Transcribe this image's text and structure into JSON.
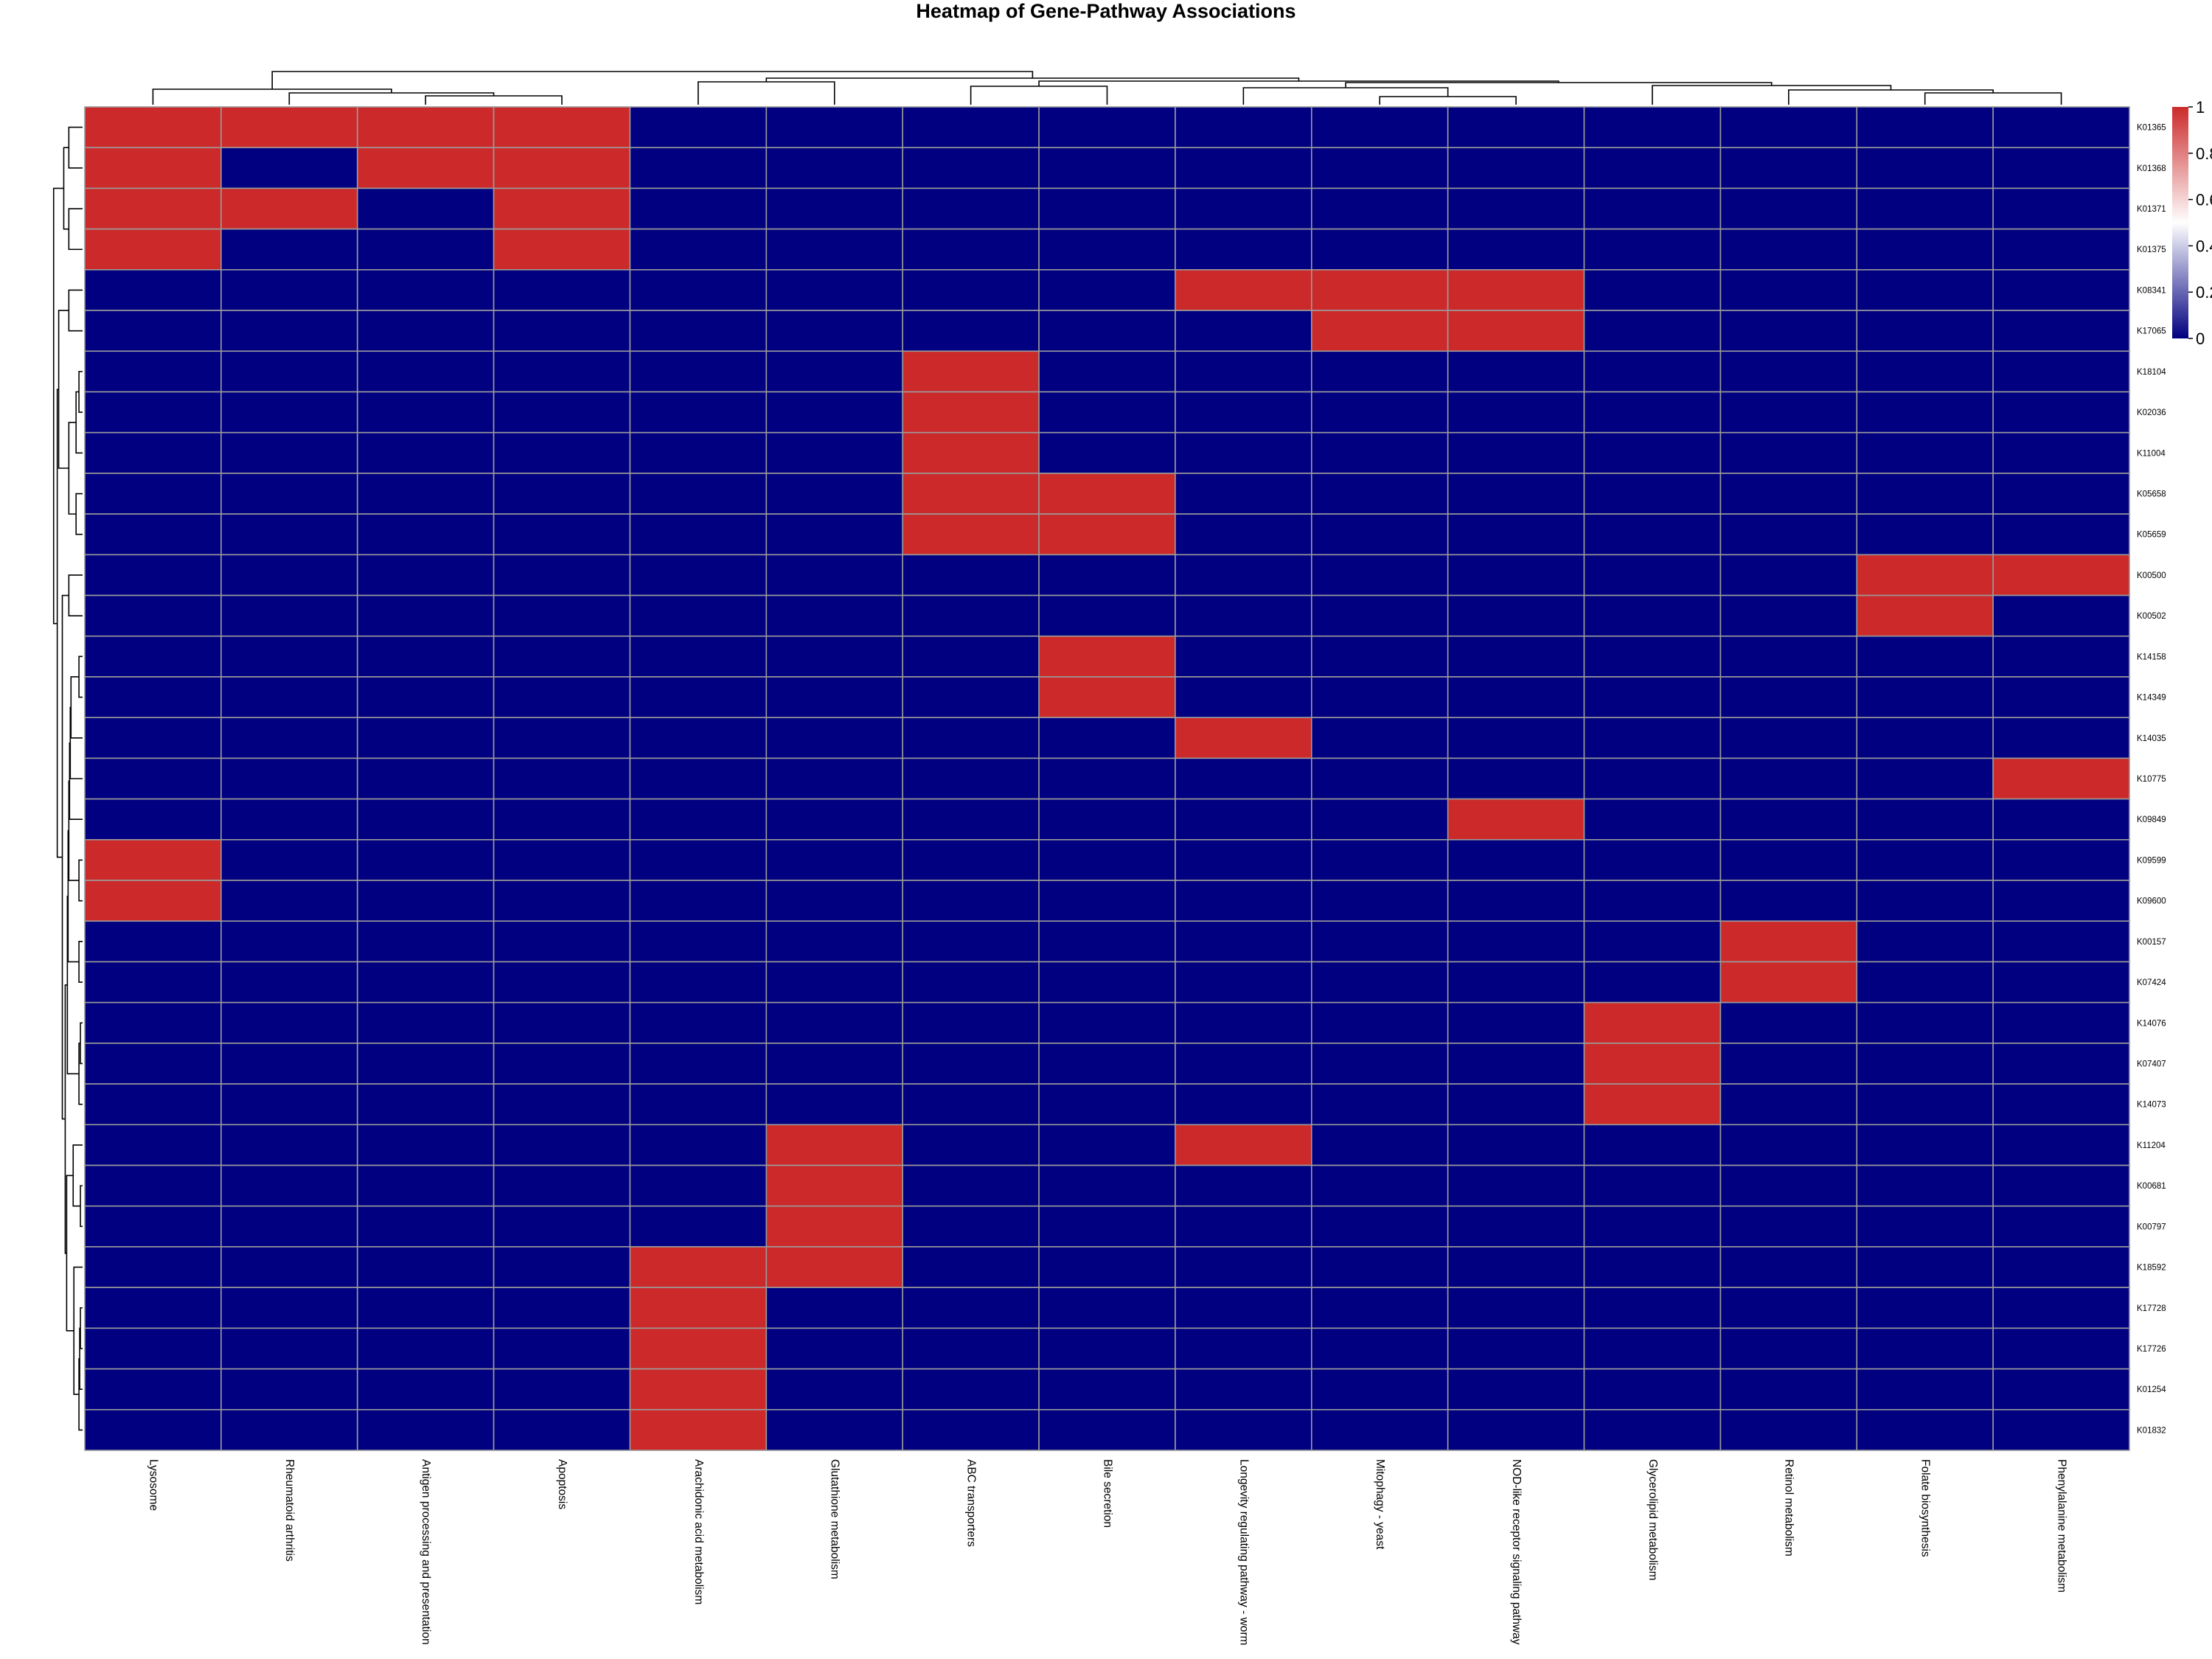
{
  "chart_data": {
    "type": "heatmap",
    "title": "Heatmap of Gene-Pathway Associations",
    "columns": [
      "Lysosome",
      "Rheumatoid arthritis",
      "Antigen processing and presentation",
      "Apoptosis",
      "Arachidonic acid metabolism",
      "Glutathione metabolism",
      "ABC transporters",
      "Bile secretion",
      "Longevity regulating pathway - worm",
      "Mitophagy - yeast",
      "NOD-like receptor signaling pathway",
      "Glycerolipid metabolism",
      "Retinol metabolism",
      "Folate biosynthesis",
      "Phenylalanine metabolism"
    ],
    "rows": [
      "K01365",
      "K01368",
      "K01371",
      "K01375",
      "K08341",
      "K17065",
      "K18104",
      "K02036",
      "K11004",
      "K05658",
      "K05659",
      "K00500",
      "K00502",
      "K14158",
      "K14349",
      "K14035",
      "K10775",
      "K09849",
      "K09599",
      "K09600",
      "K00157",
      "K07424",
      "K14076",
      "K07407",
      "K14073",
      "K11204",
      "K00681",
      "K00797",
      "K18592",
      "K17728",
      "K17726",
      "K01254",
      "K01832"
    ],
    "values": [
      [
        1,
        1,
        1,
        1,
        0,
        0,
        0,
        0,
        0,
        0,
        0,
        0,
        0,
        0,
        0
      ],
      [
        1,
        0,
        1,
        1,
        0,
        0,
        0,
        0,
        0,
        0,
        0,
        0,
        0,
        0,
        0
      ],
      [
        1,
        1,
        0,
        1,
        0,
        0,
        0,
        0,
        0,
        0,
        0,
        0,
        0,
        0,
        0
      ],
      [
        1,
        0,
        0,
        1,
        0,
        0,
        0,
        0,
        0,
        0,
        0,
        0,
        0,
        0,
        0
      ],
      [
        0,
        0,
        0,
        0,
        0,
        0,
        0,
        0,
        1,
        1,
        1,
        0,
        0,
        0,
        0
      ],
      [
        0,
        0,
        0,
        0,
        0,
        0,
        0,
        0,
        0,
        1,
        1,
        0,
        0,
        0,
        0
      ],
      [
        0,
        0,
        0,
        0,
        0,
        0,
        1,
        0,
        0,
        0,
        0,
        0,
        0,
        0,
        0
      ],
      [
        0,
        0,
        0,
        0,
        0,
        0,
        1,
        0,
        0,
        0,
        0,
        0,
        0,
        0,
        0
      ],
      [
        0,
        0,
        0,
        0,
        0,
        0,
        1,
        0,
        0,
        0,
        0,
        0,
        0,
        0,
        0
      ],
      [
        0,
        0,
        0,
        0,
        0,
        0,
        1,
        1,
        0,
        0,
        0,
        0,
        0,
        0,
        0
      ],
      [
        0,
        0,
        0,
        0,
        0,
        0,
        1,
        1,
        0,
        0,
        0,
        0,
        0,
        0,
        0
      ],
      [
        0,
        0,
        0,
        0,
        0,
        0,
        0,
        0,
        0,
        0,
        0,
        0,
        0,
        1,
        1
      ],
      [
        0,
        0,
        0,
        0,
        0,
        0,
        0,
        0,
        0,
        0,
        0,
        0,
        0,
        1,
        0
      ],
      [
        0,
        0,
        0,
        0,
        0,
        0,
        0,
        1,
        0,
        0,
        0,
        0,
        0,
        0,
        0
      ],
      [
        0,
        0,
        0,
        0,
        0,
        0,
        0,
        1,
        0,
        0,
        0,
        0,
        0,
        0,
        0
      ],
      [
        0,
        0,
        0,
        0,
        0,
        0,
        0,
        0,
        1,
        0,
        0,
        0,
        0,
        0,
        0
      ],
      [
        0,
        0,
        0,
        0,
        0,
        0,
        0,
        0,
        0,
        0,
        0,
        0,
        0,
        0,
        1
      ],
      [
        0,
        0,
        0,
        0,
        0,
        0,
        0,
        0,
        0,
        0,
        1,
        0,
        0,
        0,
        0
      ],
      [
        1,
        0,
        0,
        0,
        0,
        0,
        0,
        0,
        0,
        0,
        0,
        0,
        0,
        0,
        0
      ],
      [
        1,
        0,
        0,
        0,
        0,
        0,
        0,
        0,
        0,
        0,
        0,
        0,
        0,
        0,
        0
      ],
      [
        0,
        0,
        0,
        0,
        0,
        0,
        0,
        0,
        0,
        0,
        0,
        0,
        1,
        0,
        0
      ],
      [
        0,
        0,
        0,
        0,
        0,
        0,
        0,
        0,
        0,
        0,
        0,
        0,
        1,
        0,
        0
      ],
      [
        0,
        0,
        0,
        0,
        0,
        0,
        0,
        0,
        0,
        0,
        0,
        1,
        0,
        0,
        0
      ],
      [
        0,
        0,
        0,
        0,
        0,
        0,
        0,
        0,
        0,
        0,
        0,
        1,
        0,
        0,
        0
      ],
      [
        0,
        0,
        0,
        0,
        0,
        0,
        0,
        0,
        0,
        0,
        0,
        1,
        0,
        0,
        0
      ],
      [
        0,
        0,
        0,
        0,
        0,
        1,
        0,
        0,
        1,
        0,
        0,
        0,
        0,
        0,
        0
      ],
      [
        0,
        0,
        0,
        0,
        0,
        1,
        0,
        0,
        0,
        0,
        0,
        0,
        0,
        0,
        0
      ],
      [
        0,
        0,
        0,
        0,
        0,
        1,
        0,
        0,
        0,
        0,
        0,
        0,
        0,
        0,
        0
      ],
      [
        0,
        0,
        0,
        0,
        1,
        1,
        0,
        0,
        0,
        0,
        0,
        0,
        0,
        0,
        0
      ],
      [
        0,
        0,
        0,
        0,
        1,
        0,
        0,
        0,
        0,
        0,
        0,
        0,
        0,
        0,
        0
      ],
      [
        0,
        0,
        0,
        0,
        1,
        0,
        0,
        0,
        0,
        0,
        0,
        0,
        0,
        0,
        0
      ],
      [
        0,
        0,
        0,
        0,
        1,
        0,
        0,
        0,
        0,
        0,
        0,
        0,
        0,
        0,
        0
      ],
      [
        0,
        0,
        0,
        0,
        1,
        0,
        0,
        0,
        0,
        0,
        0,
        0,
        0,
        0,
        0
      ]
    ],
    "value_range": [
      0,
      1
    ],
    "legend": {
      "ticks": [
        "0",
        "0.2",
        "0.4",
        "0.6",
        "0.8",
        "1"
      ],
      "tick_values": [
        0,
        0.2,
        0.4,
        0.6,
        0.8,
        1
      ],
      "colors": [
        "#000080",
        "#ffffff",
        "#cc2a2a"
      ],
      "placement": "right"
    },
    "colors": {
      "low": "#000080",
      "high": "#cc2a2a",
      "grid": "#9b9b9b"
    },
    "row_dendrogram": true,
    "column_dendrogram": true
  }
}
